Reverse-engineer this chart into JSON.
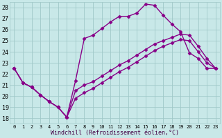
{
  "background_color": "#c8e8e8",
  "grid_color": "#a0c8c8",
  "line_color": "#880088",
  "marker": "D",
  "markersize": 2.5,
  "linewidth": 1.0,
  "xlabel": "Windchill (Refroidissement éolien,°C)",
  "xlabel_fontsize": 6.0,
  "yticks": [
    18,
    19,
    20,
    21,
    22,
    23,
    24,
    25,
    26,
    27,
    28
  ],
  "xlim": [
    -0.5,
    23.5
  ],
  "ylim": [
    17.5,
    28.5
  ],
  "xtick_labels": [
    "0",
    "1",
    "2",
    "3",
    "4",
    "5",
    "6",
    "7",
    "8",
    "9",
    "10",
    "11",
    "12",
    "13",
    "14",
    "15",
    "16",
    "17",
    "18",
    "19",
    "20",
    "21",
    "22",
    "23"
  ],
  "s1x": [
    0,
    1,
    2,
    3,
    4,
    5,
    6,
    7,
    8,
    9,
    10,
    11,
    12,
    13,
    14,
    15,
    16,
    17,
    18,
    19,
    20,
    21,
    22,
    23
  ],
  "s1y": [
    22.5,
    21.2,
    20.8,
    20.1,
    19.5,
    19.0,
    18.1,
    21.4,
    25.2,
    25.5,
    26.1,
    26.7,
    27.2,
    27.2,
    27.5,
    28.3,
    28.2,
    27.3,
    26.5,
    25.8,
    23.9,
    23.4,
    22.5,
    22.5
  ],
  "s2x": [
    0,
    1,
    2,
    3,
    4,
    5,
    6,
    7,
    8,
    9,
    10,
    11,
    12,
    13,
    14,
    15,
    16,
    17,
    18,
    19,
    20,
    21,
    22,
    23
  ],
  "s2y": [
    22.5,
    21.2,
    20.8,
    20.1,
    19.5,
    19.0,
    18.1,
    20.5,
    21.0,
    21.3,
    21.8,
    22.3,
    22.8,
    23.2,
    23.7,
    24.2,
    24.7,
    25.0,
    25.3,
    25.6,
    25.5,
    24.5,
    23.4,
    22.5
  ],
  "s3x": [
    0,
    1,
    2,
    3,
    4,
    5,
    6,
    7,
    8,
    9,
    10,
    11,
    12,
    13,
    14,
    15,
    16,
    17,
    18,
    19,
    20,
    21,
    22,
    23
  ],
  "s3y": [
    22.5,
    21.2,
    20.8,
    20.1,
    19.5,
    19.0,
    18.1,
    19.8,
    20.3,
    20.7,
    21.2,
    21.7,
    22.2,
    22.6,
    23.1,
    23.6,
    24.1,
    24.5,
    24.8,
    25.1,
    25.0,
    24.0,
    23.0,
    22.5
  ]
}
